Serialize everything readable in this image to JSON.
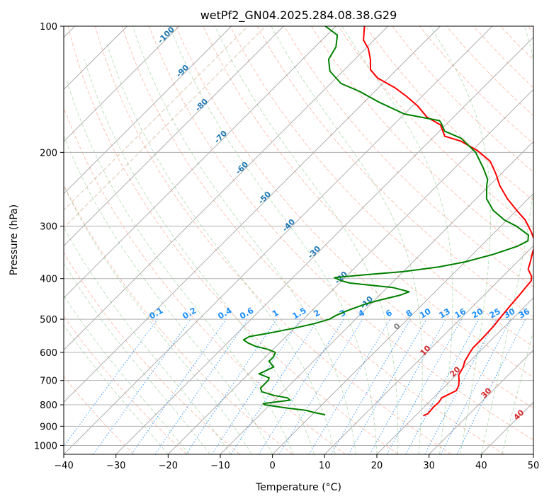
{
  "chart_data": {
    "type": "line",
    "title": "wetPf2_GN04.2025.284.08.38.G29",
    "xlabel": "Temperature (°C)",
    "ylabel": "Pressure (hPa)",
    "xlim": [
      -40,
      50
    ],
    "ylim": [
      1050,
      100
    ],
    "y_scale": "log",
    "grid": true,
    "x_ticks": [
      -40,
      -30,
      -20,
      -10,
      0,
      10,
      20,
      30,
      40,
      50
    ],
    "y_ticks": [
      100,
      200,
      300,
      400,
      500,
      600,
      700,
      800,
      900,
      1000
    ],
    "isotherm_labels": [
      "-100",
      "-90",
      "-80",
      "-70",
      "-60",
      "-50",
      "-40",
      "-30",
      "-20",
      "-10"
    ],
    "mixing_ratio_labels": [
      "0.1",
      "0.2",
      "0.4",
      "0.6",
      "1",
      "1.5",
      "2",
      "3",
      "4",
      "6",
      "8",
      "10",
      "13",
      "16",
      "20",
      "25",
      "30",
      "36"
    ],
    "wetbulb_labels": [
      "0",
      "10",
      "20",
      "30",
      "40"
    ],
    "series": [
      {
        "name": "Temperature",
        "color": "#ff0000",
        "points": [
          [
            21.5,
            850
          ],
          [
            22,
            840
          ],
          [
            21.8,
            810
          ],
          [
            21.9,
            790
          ],
          [
            21.6,
            770
          ],
          [
            23,
            740
          ],
          [
            22.5,
            720
          ],
          [
            21.6,
            700
          ],
          [
            20.5,
            680
          ],
          [
            19.8,
            650
          ],
          [
            19.0,
            630
          ],
          [
            18.3,
            600
          ],
          [
            18.0,
            585
          ],
          [
            18.0,
            560
          ],
          [
            17.8,
            520
          ],
          [
            17.5,
            500
          ],
          [
            17.0,
            460
          ],
          [
            16.8,
            440
          ],
          [
            16.5,
            420
          ],
          [
            16.3,
            405
          ],
          [
            15.5,
            395
          ],
          [
            13.5,
            380
          ],
          [
            12.5,
            365
          ],
          [
            11.0,
            345
          ],
          [
            10.0,
            330
          ],
          [
            7.0,
            310
          ],
          [
            3.5,
            290
          ],
          [
            0,
            275
          ],
          [
            -4,
            258
          ],
          [
            -8,
            240
          ],
          [
            -11,
            225
          ],
          [
            -14.5,
            210
          ],
          [
            -19,
            198
          ],
          [
            -24,
            188
          ],
          [
            -28,
            183
          ],
          [
            -31,
            172
          ],
          [
            -35,
            165
          ],
          [
            -39,
            155
          ],
          [
            -43,
            147
          ],
          [
            -47,
            140
          ],
          [
            -52,
            133
          ],
          [
            -55,
            127
          ],
          [
            -57,
            120
          ],
          [
            -59.5,
            113
          ],
          [
            -62,
            108
          ],
          [
            -64.5,
            100
          ]
        ]
      },
      {
        "name": "Dewpoint",
        "color": "#008000",
        "points": [
          [
            2.5,
            845
          ],
          [
            0,
            835
          ],
          [
            -2,
            825
          ],
          [
            -6,
            815
          ],
          [
            -11,
            800
          ],
          [
            -11.5,
            795
          ],
          [
            -7,
            780
          ],
          [
            -8,
            770
          ],
          [
            -11,
            760
          ],
          [
            -14,
            745
          ],
          [
            -15,
            730
          ],
          [
            -15,
            700
          ],
          [
            -15.3,
            690
          ],
          [
            -18,
            675
          ],
          [
            -16.5,
            650
          ],
          [
            -18.5,
            630
          ],
          [
            -18.5,
            615
          ],
          [
            -19,
            600
          ],
          [
            -21,
            590
          ],
          [
            -24,
            580
          ],
          [
            -26,
            570
          ],
          [
            -27.5,
            560
          ],
          [
            -27,
            550
          ],
          [
            -24,
            540
          ],
          [
            -20,
            525
          ],
          [
            -17,
            512
          ],
          [
            -15,
            500
          ],
          [
            -14.5,
            490
          ],
          [
            -13,
            475
          ],
          [
            -11,
            460
          ],
          [
            -9,
            450
          ],
          [
            -6,
            438
          ],
          [
            -5,
            430
          ],
          [
            -9,
            420
          ],
          [
            -18,
            410
          ],
          [
            -20,
            405
          ],
          [
            -22,
            398
          ],
          [
            -17,
            392
          ],
          [
            -10,
            385
          ],
          [
            -4,
            375
          ],
          [
            0,
            365
          ],
          [
            4,
            350
          ],
          [
            7,
            335
          ],
          [
            8,
            325
          ],
          [
            7,
            315
          ],
          [
            3,
            300
          ],
          [
            -0.5,
            290
          ],
          [
            -4.5,
            275
          ],
          [
            -8,
            258
          ],
          [
            -10.5,
            240
          ],
          [
            -11.5,
            232
          ],
          [
            -14.5,
            218
          ],
          [
            -19,
            200
          ],
          [
            -24.5,
            185
          ],
          [
            -29,
            178
          ],
          [
            -31,
            171
          ],
          [
            -32,
            168
          ],
          [
            -40,
            162
          ],
          [
            -47,
            152
          ],
          [
            -53,
            143
          ],
          [
            -58,
            137
          ],
          [
            -62.5,
            128
          ],
          [
            -65,
            120
          ],
          [
            -66,
            112
          ],
          [
            -68,
            105
          ],
          [
            -72,
            100
          ]
        ]
      }
    ]
  }
}
